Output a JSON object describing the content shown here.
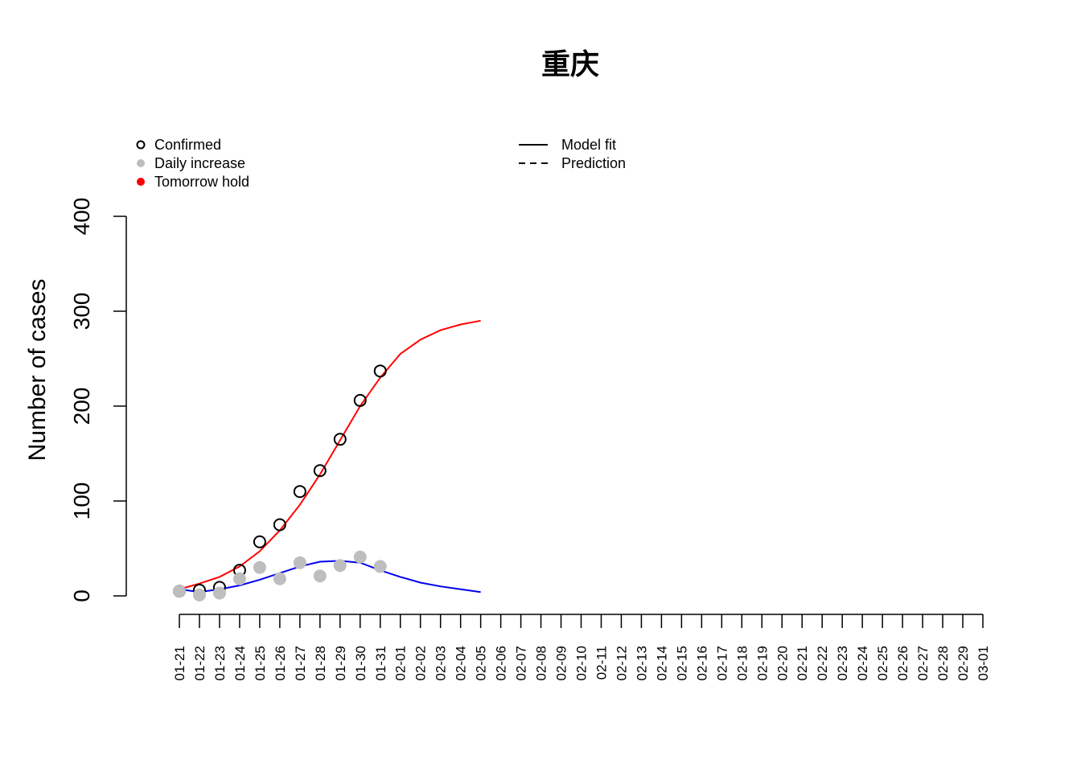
{
  "chart_data": {
    "type": "scatter-fit",
    "title": "重庆",
    "y_label": "Number of cases",
    "categories": [
      "01-21",
      "01-22",
      "01-23",
      "01-24",
      "01-25",
      "01-26",
      "01-27",
      "01-28",
      "01-29",
      "01-30",
      "01-31",
      "02-01",
      "02-02",
      "02-03",
      "02-04",
      "02-05",
      "02-06",
      "02-07",
      "02-08",
      "02-09",
      "02-10",
      "02-11",
      "02-12",
      "02-13",
      "02-14",
      "02-15",
      "02-16",
      "02-17",
      "02-18",
      "02-19",
      "02-20",
      "02-21",
      "02-22",
      "02-23",
      "02-24",
      "02-25",
      "02-26",
      "02-27",
      "02-28",
      "02-29",
      "03-01"
    ],
    "ylim": [
      0,
      400
    ],
    "yticks": [
      0,
      100,
      200,
      300,
      400
    ],
    "point_series": [
      {
        "name": "Confirmed",
        "marker": "open",
        "color": "#000000",
        "values": [
          5,
          6,
          9,
          27,
          57,
          75,
          110,
          132,
          165,
          206,
          237,
          null,
          null,
          null,
          null,
          null,
          null,
          null,
          null,
          null,
          null,
          null,
          null,
          null,
          null,
          null,
          null,
          null,
          null,
          null,
          null,
          null,
          null,
          null,
          null,
          null,
          null,
          null,
          null,
          null,
          null
        ]
      },
      {
        "name": "Daily increase",
        "marker": "filled",
        "color": "#bebebe",
        "values": [
          5,
          1,
          3,
          18,
          30,
          18,
          35,
          21,
          32,
          41,
          31,
          null,
          null,
          null,
          null,
          null,
          null,
          null,
          null,
          null,
          null,
          null,
          null,
          null,
          null,
          null,
          null,
          null,
          null,
          null,
          null,
          null,
          null,
          null,
          null,
          null,
          null,
          null,
          null,
          null,
          null
        ]
      },
      {
        "name": "Tomorrow hold",
        "marker": "filled",
        "color": "#ff0000"
      }
    ],
    "line_legend": [
      {
        "name": "Model fit",
        "dash": false
      },
      {
        "name": "Prediction",
        "dash": true
      }
    ],
    "fit_series": [
      {
        "color": "#ff0000",
        "values": [
          7,
          13,
          20,
          31,
          47,
          69,
          96,
          128,
          164,
          200,
          230,
          255,
          270,
          280,
          286,
          290,
          null,
          null,
          null,
          null,
          null,
          null,
          null,
          null,
          null,
          null,
          null,
          null,
          null,
          null,
          null,
          null,
          null,
          null,
          null,
          null,
          null,
          null,
          null,
          null,
          null
        ]
      },
      {
        "color": "#0000ee",
        "values": [
          7,
          4,
          7,
          11,
          17,
          24,
          31,
          36,
          37,
          35,
          27,
          20,
          14,
          10,
          7,
          4,
          null,
          null,
          null,
          null,
          null,
          null,
          null,
          null,
          null,
          null,
          null,
          null,
          null,
          null,
          null,
          null,
          null,
          null,
          null,
          null,
          null,
          null,
          null,
          null,
          null
        ]
      }
    ]
  }
}
